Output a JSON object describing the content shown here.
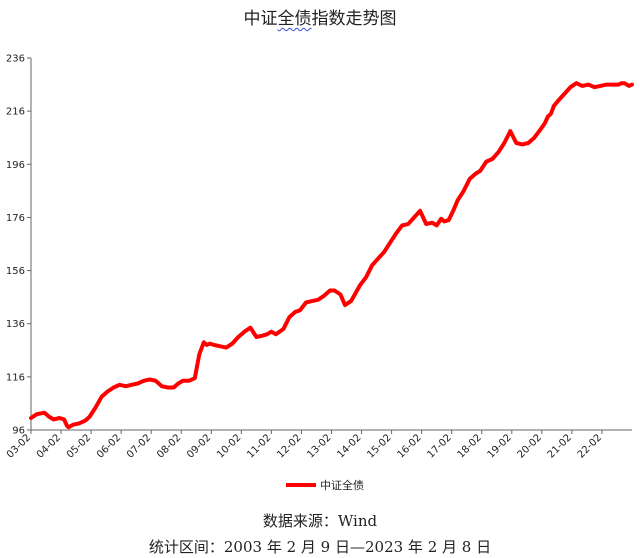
{
  "title_parts": [
    "中证",
    "全债",
    "指数走势图"
  ],
  "chart_data": {
    "type": "line",
    "title": "中证全债指数走势图",
    "xlabel": "",
    "ylabel": "",
    "ylim": [
      96,
      236
    ],
    "yticks": [
      96,
      116,
      136,
      156,
      176,
      196,
      216,
      236
    ],
    "xticks": [
      "03-02",
      "04-02",
      "05-02",
      "06-02",
      "07-02",
      "08-02",
      "09-02",
      "10-02",
      "11-02",
      "12-02",
      "13-02",
      "14-02",
      "15-02",
      "16-02",
      "17-02",
      "18-02",
      "19-02",
      "20-02",
      "21-02",
      "22-02"
    ],
    "x_start": 2003.1,
    "x_end": 2023.1,
    "legend_position": "bottom",
    "grid": false,
    "series": [
      {
        "name": "中证全债",
        "color": "#ff0000",
        "x": [
          2003.1,
          2003.3,
          2003.55,
          2003.7,
          2003.85,
          2004.05,
          2004.2,
          2004.3,
          2004.35,
          2004.5,
          2004.7,
          2004.9,
          2005.05,
          2005.25,
          2005.45,
          2005.65,
          2005.85,
          2006.05,
          2006.25,
          2006.45,
          2006.65,
          2006.85,
          2007.05,
          2007.25,
          2007.45,
          2007.65,
          2007.85,
          2008.0,
          2008.15,
          2008.35,
          2008.55,
          2008.7,
          2008.85,
          2008.95,
          2009.05,
          2009.2,
          2009.4,
          2009.6,
          2009.8,
          2010.0,
          2010.2,
          2010.4,
          2010.6,
          2010.8,
          2010.95,
          2011.1,
          2011.25,
          2011.5,
          2011.7,
          2011.9,
          2012.05,
          2012.25,
          2012.45,
          2012.65,
          2012.85,
          2013.05,
          2013.2,
          2013.4,
          2013.55,
          2013.75,
          2013.9,
          2014.05,
          2014.25,
          2014.45,
          2014.65,
          2014.85,
          2015.05,
          2015.25,
          2015.45,
          2015.65,
          2015.85,
          2016.05,
          2016.25,
          2016.45,
          2016.6,
          2016.75,
          2016.85,
          2017.0,
          2017.15,
          2017.3,
          2017.5,
          2017.7,
          2017.9,
          2018.05,
          2018.25,
          2018.45,
          2018.65,
          2018.85,
          2019.05,
          2019.25,
          2019.45,
          2019.65,
          2019.85,
          2020.05,
          2020.2,
          2020.3,
          2020.4,
          2020.5,
          2020.65,
          2020.85,
          2021.05,
          2021.25,
          2021.45,
          2021.65,
          2021.85,
          2022.05,
          2022.25,
          2022.45,
          2022.65,
          2022.75,
          2022.85,
          2023.0,
          2023.1
        ],
        "values": [
          100.5,
          102.0,
          102.5,
          101.0,
          100.0,
          100.5,
          100.0,
          97.5,
          97.0,
          98.0,
          98.5,
          99.5,
          101.0,
          104.5,
          108.5,
          110.5,
          112.0,
          113.0,
          112.5,
          113.0,
          113.5,
          114.5,
          115.0,
          114.5,
          112.5,
          112.0,
          112.0,
          113.5,
          114.5,
          114.5,
          115.5,
          124.5,
          129.0,
          128.0,
          128.5,
          128.0,
          127.5,
          127.0,
          128.5,
          131.0,
          133.0,
          134.5,
          131.0,
          131.5,
          132.0,
          133.0,
          132.0,
          134.0,
          138.5,
          140.5,
          141.0,
          144.0,
          144.5,
          145.0,
          146.5,
          148.5,
          148.5,
          147.0,
          143.0,
          144.5,
          147.5,
          150.5,
          153.5,
          158.0,
          160.5,
          163.0,
          166.5,
          170.0,
          173.0,
          173.5,
          176.0,
          178.5,
          173.5,
          174.0,
          173.0,
          175.5,
          174.5,
          175.0,
          178.5,
          182.5,
          186.0,
          190.5,
          192.5,
          193.5,
          197.0,
          198.0,
          200.5,
          204.0,
          208.5,
          204.0,
          203.5,
          204.0,
          206.0,
          209.0,
          211.5,
          214.0,
          215.0,
          218.0,
          220.0,
          222.5,
          225.0,
          226.5,
          225.5,
          226.0,
          225.0,
          225.5,
          226.0,
          226.0,
          226.0,
          226.5,
          226.5,
          225.5,
          226.0
        ]
      }
    ]
  },
  "legend_label": "中证全债",
  "source_text": "数据来源：Wind",
  "range_text": "统计区间：2003 年 2 月 9 日—2023 年 2 月 8 日"
}
